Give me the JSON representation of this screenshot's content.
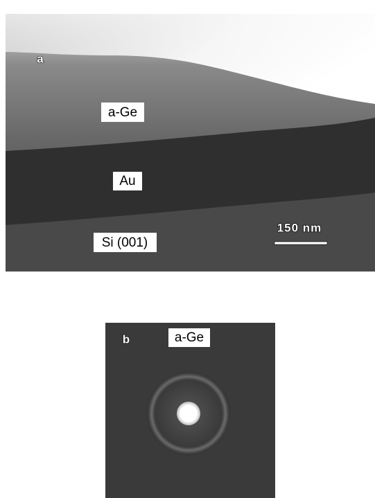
{
  "panel_a": {
    "label": "a",
    "layers": [
      "a-Ge",
      "Au",
      "Si (001)"
    ],
    "scale_bar": "150 nm"
  },
  "panel_b": {
    "label": "b",
    "title": "a-Ge"
  }
}
